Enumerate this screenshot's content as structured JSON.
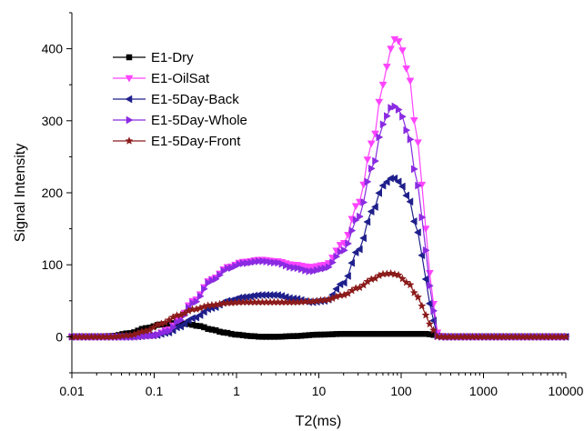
{
  "chart_data": {
    "type": "line",
    "title": "",
    "xlabel": "T2(ms)",
    "ylabel": "Signal Intensity",
    "xscale": "log",
    "xlim": [
      0.01,
      10000
    ],
    "ylim": [
      -50,
      450
    ],
    "xticks": [
      0.01,
      0.1,
      1,
      10,
      100,
      1000,
      10000
    ],
    "xtick_labels": [
      "0.01",
      "0.1",
      "1",
      "10",
      "100",
      "1000",
      "10000"
    ],
    "yticks": [
      0,
      100,
      200,
      300,
      400
    ],
    "ytick_labels": [
      "0",
      "100",
      "200",
      "300",
      "400"
    ],
    "legend_position": "top-left",
    "grid": false,
    "series": [
      {
        "name": "E1-Dry",
        "color": "#000000",
        "marker": "square",
        "points": [
          [
            0.01,
            0
          ],
          [
            0.02,
            0
          ],
          [
            0.03,
            1
          ],
          [
            0.05,
            5
          ],
          [
            0.08,
            12
          ],
          [
            0.12,
            17
          ],
          [
            0.18,
            19
          ],
          [
            0.25,
            18
          ],
          [
            0.35,
            15
          ],
          [
            0.5,
            10
          ],
          [
            0.7,
            6
          ],
          [
            1.0,
            3
          ],
          [
            1.5,
            1
          ],
          [
            2,
            0
          ],
          [
            3,
            0
          ],
          [
            5,
            1
          ],
          [
            10,
            3
          ],
          [
            20,
            4
          ],
          [
            50,
            4
          ],
          [
            100,
            4
          ],
          [
            200,
            4
          ],
          [
            280,
            2
          ],
          [
            320,
            0
          ],
          [
            1000,
            0
          ],
          [
            10000,
            0
          ]
        ]
      },
      {
        "name": "E1-OilSat",
        "color": "#ff44ff",
        "marker": "triangle-down",
        "points": [
          [
            0.01,
            0
          ],
          [
            0.05,
            0
          ],
          [
            0.1,
            2
          ],
          [
            0.15,
            10
          ],
          [
            0.2,
            25
          ],
          [
            0.3,
            50
          ],
          [
            0.5,
            80
          ],
          [
            0.8,
            97
          ],
          [
            1.2,
            104
          ],
          [
            2,
            107
          ],
          [
            3,
            105
          ],
          [
            5,
            100
          ],
          [
            8,
            97
          ],
          [
            12,
            100
          ],
          [
            20,
            130
          ],
          [
            30,
            185
          ],
          [
            45,
            270
          ],
          [
            60,
            350
          ],
          [
            75,
            400
          ],
          [
            85,
            414
          ],
          [
            95,
            410
          ],
          [
            120,
            370
          ],
          [
            160,
            270
          ],
          [
            200,
            150
          ],
          [
            240,
            50
          ],
          [
            280,
            5
          ],
          [
            320,
            0
          ],
          [
            1000,
            0
          ],
          [
            10000,
            0
          ]
        ]
      },
      {
        "name": "E1-5Day-Back",
        "color": "#1f1f8c",
        "marker": "triangle-left",
        "points": [
          [
            0.01,
            0
          ],
          [
            0.05,
            0
          ],
          [
            0.1,
            2
          ],
          [
            0.15,
            6
          ],
          [
            0.2,
            14
          ],
          [
            0.3,
            26
          ],
          [
            0.5,
            40
          ],
          [
            0.8,
            50
          ],
          [
            1.2,
            55
          ],
          [
            2,
            58
          ],
          [
            3,
            58
          ],
          [
            5,
            53
          ],
          [
            8,
            48
          ],
          [
            12,
            50
          ],
          [
            20,
            75
          ],
          [
            30,
            120
          ],
          [
            45,
            175
          ],
          [
            60,
            210
          ],
          [
            75,
            220
          ],
          [
            85,
            220
          ],
          [
            95,
            215
          ],
          [
            120,
            195
          ],
          [
            160,
            145
          ],
          [
            200,
            80
          ],
          [
            240,
            25
          ],
          [
            280,
            0
          ],
          [
            1000,
            0
          ],
          [
            10000,
            0
          ]
        ]
      },
      {
        "name": "E1-5Day-Whole",
        "color": "#8a2be2",
        "marker": "triangle-right",
        "points": [
          [
            0.01,
            0
          ],
          [
            0.05,
            0
          ],
          [
            0.1,
            2
          ],
          [
            0.15,
            8
          ],
          [
            0.2,
            22
          ],
          [
            0.3,
            47
          ],
          [
            0.5,
            78
          ],
          [
            0.8,
            95
          ],
          [
            1.2,
            102
          ],
          [
            2,
            105
          ],
          [
            3,
            103
          ],
          [
            5,
            96
          ],
          [
            8,
            91
          ],
          [
            12,
            95
          ],
          [
            20,
            120
          ],
          [
            30,
            165
          ],
          [
            45,
            235
          ],
          [
            60,
            295
          ],
          [
            75,
            318
          ],
          [
            85,
            320
          ],
          [
            95,
            315
          ],
          [
            120,
            285
          ],
          [
            160,
            210
          ],
          [
            200,
            120
          ],
          [
            240,
            40
          ],
          [
            280,
            0
          ],
          [
            1000,
            0
          ],
          [
            10000,
            0
          ]
        ]
      },
      {
        "name": "E1-5Day-Front",
        "color": "#8b1a1a",
        "marker": "star",
        "points": [
          [
            0.01,
            0
          ],
          [
            0.03,
            0
          ],
          [
            0.05,
            2
          ],
          [
            0.08,
            8
          ],
          [
            0.12,
            18
          ],
          [
            0.2,
            30
          ],
          [
            0.3,
            38
          ],
          [
            0.5,
            44
          ],
          [
            0.8,
            47
          ],
          [
            1.2,
            48
          ],
          [
            2,
            48
          ],
          [
            3,
            48
          ],
          [
            5,
            48
          ],
          [
            8,
            49
          ],
          [
            12,
            51
          ],
          [
            20,
            58
          ],
          [
            30,
            68
          ],
          [
            45,
            80
          ],
          [
            60,
            87
          ],
          [
            75,
            88
          ],
          [
            90,
            86
          ],
          [
            120,
            75
          ],
          [
            160,
            55
          ],
          [
            200,
            30
          ],
          [
            240,
            10
          ],
          [
            280,
            0
          ],
          [
            1000,
            0
          ],
          [
            10000,
            0
          ]
        ]
      }
    ]
  }
}
